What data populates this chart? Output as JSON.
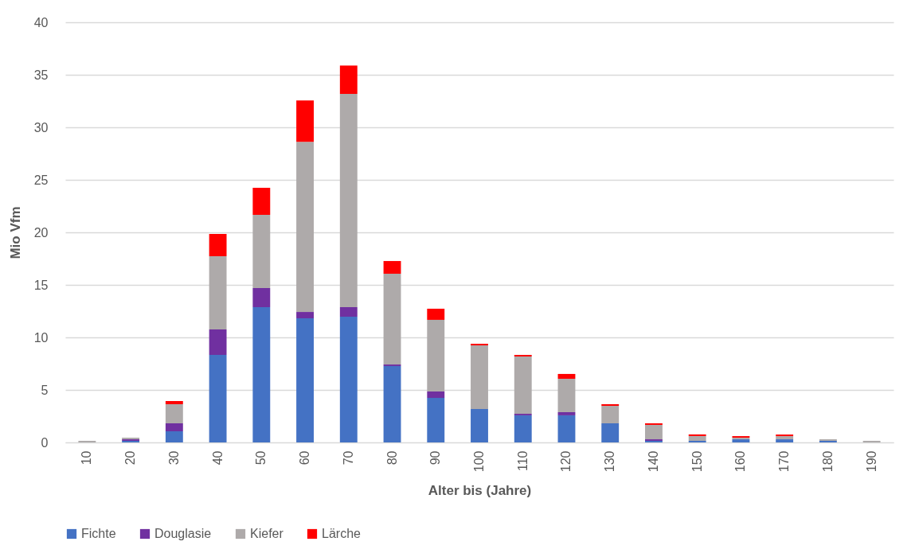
{
  "chart_data": {
    "type": "bar",
    "stacked": true,
    "xlabel": "Alter bis (Jahre)",
    "ylabel": "Mio Vfm",
    "categories": [
      "10",
      "20",
      "30",
      "40",
      "50",
      "60",
      "70",
      "80",
      "90",
      "100",
      "110",
      "120",
      "130",
      "140",
      "150",
      "160",
      "170",
      "180",
      "190"
    ],
    "series": [
      {
        "name": "Fichte",
        "color": "#4472c4",
        "values": [
          0,
          0.15,
          1.06,
          8.33,
          12.88,
          11.82,
          11.97,
          7.27,
          4.24,
          3.18,
          2.58,
          2.58,
          1.82,
          0.15,
          0.15,
          0.3,
          0.3,
          0.15,
          0
        ]
      },
      {
        "name": "Douglasie",
        "color": "#7030a0",
        "values": [
          0,
          0.15,
          0.76,
          2.43,
          1.82,
          0.6,
          0.91,
          0.15,
          0.61,
          0,
          0.15,
          0.3,
          0,
          0.15,
          0,
          0,
          0,
          0,
          0
        ]
      },
      {
        "name": "Kiefer",
        "color": "#aeaaaa",
        "values": [
          0.15,
          0.15,
          1.82,
          6.97,
          6.97,
          16.2,
          20.3,
          8.64,
          6.82,
          6.06,
          5.45,
          3.18,
          1.66,
          1.37,
          0.46,
          0.15,
          0.3,
          0.15,
          0.15
        ]
      },
      {
        "name": "Lärche",
        "color": "#ff0000",
        "values": [
          0,
          0,
          0.3,
          2.12,
          2.57,
          3.94,
          2.7,
          1.21,
          1.06,
          0.15,
          0.15,
          0.46,
          0.16,
          0.15,
          0.15,
          0.15,
          0.15,
          0,
          0
        ]
      }
    ],
    "ylim": [
      0,
      40
    ],
    "yticks": [
      0,
      5,
      10,
      15,
      20,
      25,
      30,
      35,
      40
    ],
    "grid": "y",
    "legend": "bottom"
  }
}
